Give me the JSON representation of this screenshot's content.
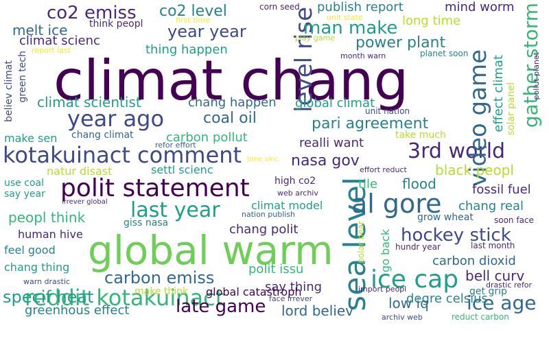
{
  "palette": {
    "darkpurple": "#440154",
    "purple": "#482878",
    "indigo": "#3e4989",
    "blue": "#31688e",
    "steel": "#26828e",
    "teal": "#1f9e89",
    "green": "#35b779",
    "lightgreen": "#6ece58",
    "lime": "#b5de2b",
    "yellow": "#fde725"
  },
  "words": [
    "climat chang",
    "global warm",
    "sea level",
    "polit statement",
    "kotakuinact comment",
    "level rise",
    "al gore",
    "3rd world",
    "reddit kotakuinact",
    "ice cap",
    "video game",
    "year ago",
    "last year",
    "gather storm",
    "co2 emiss",
    "man make",
    "year year",
    "carbon emiss",
    "specif heat",
    "late game",
    "ice age",
    "hockey stick",
    "pari agreement",
    "co2 level",
    "power plant",
    "publish report",
    "mind worm",
    "melt ice",
    "climat scienc",
    "climat scientist",
    "coal oil",
    "nasa gov",
    "black peopl",
    "chang real",
    "peopl think",
    "carbon dioxid",
    "bell curv",
    "degre celsius",
    "greenhous effect",
    "lord believ",
    "low iq",
    "realli want",
    "global climat",
    "effect climat",
    "thing happen",
    "long time",
    "chang happen",
    "carbon pollut",
    "fossil fuel",
    "flood",
    "tile",
    "climat model",
    "chang polit",
    "polit issu",
    "say thing",
    "global catastroph",
    "get grip",
    "go back",
    "human hive",
    "feel good",
    "chang thing",
    "green tech",
    "believ climat",
    "make sen",
    "chang climat",
    "natur disast",
    "settl scienc",
    "use coal",
    "say year",
    "high co2",
    "giss nasa",
    "grow wheat",
    "polar bear",
    "solar panel",
    "take much",
    "think peopl",
    "report last",
    "first time",
    "play game",
    "corn seed",
    "unit state",
    "month warn",
    "planet soon",
    "pollut planet",
    "unit nation",
    "refor effort",
    "time sinc",
    "effort reduct",
    "web archiv",
    "irrever global",
    "nation publish",
    "soon face",
    "hundr year",
    "last month",
    "drastic refor",
    "warn drastic",
    "face irrever",
    "import peopl",
    "archiv web",
    "reduct carbon",
    "make think"
  ]
}
